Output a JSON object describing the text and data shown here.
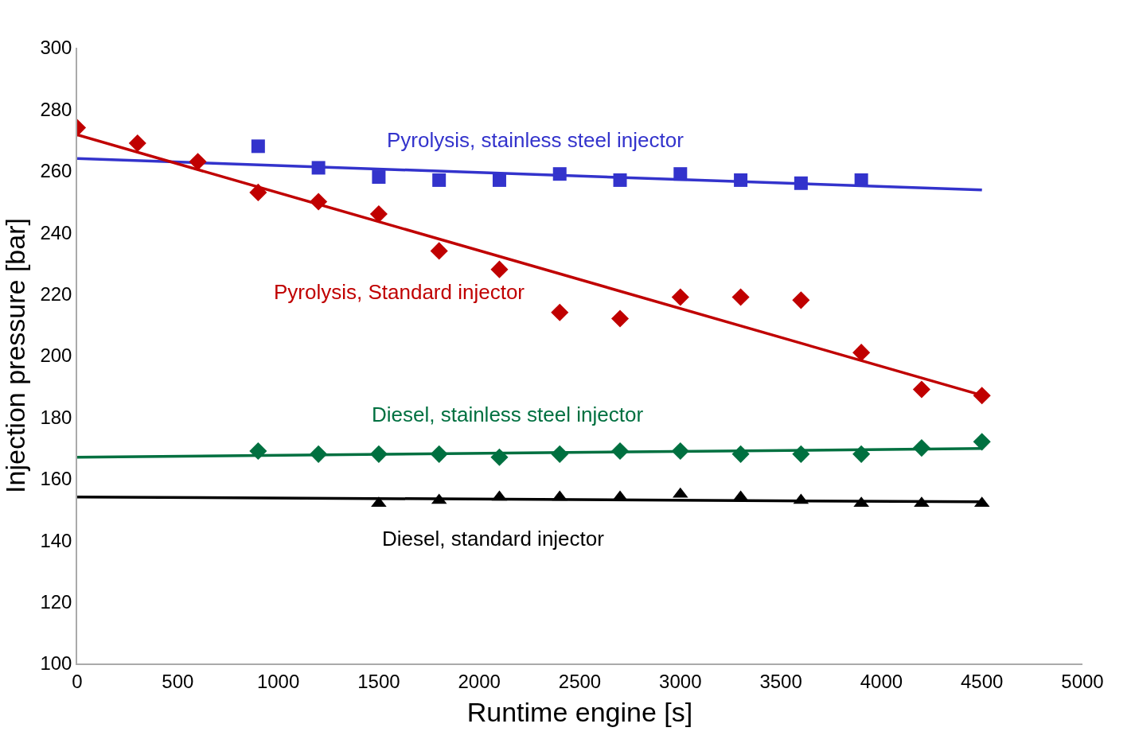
{
  "chart_data": {
    "type": "scatter",
    "xlabel": "Runtime engine [s]",
    "ylabel": "Injection pressure [bar]",
    "xlim": [
      0,
      5000
    ],
    "xticks": [
      0,
      500,
      1000,
      1500,
      2000,
      2500,
      3000,
      3500,
      4000,
      4500,
      5000
    ],
    "ylim": [
      100,
      300
    ],
    "yticks": [
      100,
      120,
      140,
      160,
      180,
      200,
      220,
      240,
      260,
      280,
      300
    ],
    "grid": false,
    "legend": false,
    "series": [
      {
        "name": "Pyrolysis, stainless steel injector",
        "marker": "square",
        "color": "#3333cc",
        "x": [
          900,
          1200,
          1500,
          1800,
          2100,
          2400,
          2700,
          3000,
          3300,
          3600,
          3900
        ],
        "values": [
          268,
          261,
          258,
          257,
          257,
          259,
          257,
          259,
          257,
          256,
          257
        ]
      },
      {
        "type": "line",
        "color": "#3333cc",
        "x": [
          0,
          4500
        ],
        "values": [
          264,
          253.8
        ]
      },
      {
        "name": "Pyrolysis, Standard injector",
        "marker": "diamond",
        "color": "#c00000",
        "x": [
          0,
          300,
          600,
          900,
          1200,
          1500,
          1800,
          2100,
          2400,
          2700,
          3000,
          3300,
          3600,
          3900,
          4200,
          4500
        ],
        "values": [
          274,
          269,
          263,
          253,
          250,
          246,
          234,
          228,
          214,
          212,
          219,
          219,
          218,
          201,
          189,
          187
        ]
      },
      {
        "type": "line",
        "color": "#c00000",
        "x": [
          0,
          4500
        ],
        "values": [
          271.7,
          187.1
        ]
      },
      {
        "name": "Diesel, stainless steel injector",
        "marker": "diamond",
        "color": "#007040",
        "x": [
          900,
          1200,
          1500,
          1800,
          2100,
          2400,
          2700,
          3000,
          3300,
          3600,
          3900,
          4200,
          4500
        ],
        "values": [
          169,
          168,
          168,
          168,
          167,
          168,
          169,
          169,
          168,
          168,
          168,
          170,
          172
        ]
      },
      {
        "type": "line",
        "color": "#007040",
        "x": [
          0,
          4500
        ],
        "values": [
          167,
          169.8
        ]
      },
      {
        "name": "Diesel, standard injector",
        "marker": "triangle",
        "color": "#000000",
        "x": [
          1500,
          1800,
          2100,
          2400,
          2700,
          3000,
          3300,
          3600,
          3900,
          4200,
          4500
        ],
        "values": [
          152,
          153,
          154,
          154,
          154,
          155,
          154,
          153,
          152,
          152,
          152
        ]
      },
      {
        "type": "line",
        "color": "#000000",
        "x": [
          0,
          4500
        ],
        "values": [
          154.1,
          152.5
        ]
      }
    ]
  }
}
